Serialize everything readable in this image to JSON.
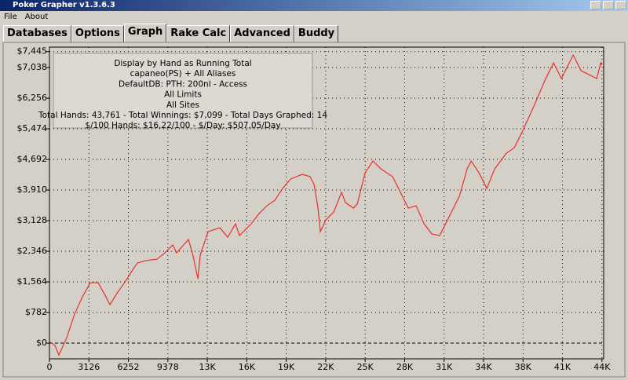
{
  "window": {
    "title": "Poker Grapher v1.3.6.3"
  },
  "menu": [
    "File",
    "About"
  ],
  "tabs": [
    "Databases",
    "Options",
    "Graph",
    "Rake Calc",
    "Advanced",
    "Buddy"
  ],
  "active_tab": 2,
  "chart_data": {
    "type": "line",
    "annotations": [
      "Display by Hand as Running Total",
      "capaneo(PS) + All Aliases",
      "DefaultDB: PTH: 200nl  - Access",
      "All Limits",
      "All Sites",
      "Total Hands: 43,761 - Total Winnings: $7,099 - Total Days Graphed: 14",
      "$/100 Hands: $16.22/100 - $/Day: $507.05/Day"
    ],
    "color": "#e8302c",
    "grid": true,
    "xlim": [
      0,
      43900
    ],
    "ylim": [
      -400,
      7560
    ],
    "xticks": [
      0,
      3126,
      6252,
      9378,
      {
        "value": 12504,
        "label": "13K"
      },
      {
        "value": 15630,
        "label": "16K"
      },
      {
        "value": 18756,
        "label": "19K"
      },
      {
        "value": 21882,
        "label": "22K"
      },
      {
        "value": 25008,
        "label": "25K"
      },
      {
        "value": 28134,
        "label": "28K"
      },
      {
        "value": 31260,
        "label": "31K"
      },
      {
        "value": 34386,
        "label": "34K"
      },
      {
        "value": 37512,
        "label": "38K"
      },
      {
        "value": 40638,
        "label": "41K"
      },
      {
        "value": 43764,
        "label": "44K"
      }
    ],
    "yticks": [
      {
        "value": 0,
        "label": "$0"
      },
      {
        "value": 782,
        "label": "$782"
      },
      {
        "value": 1564,
        "label": "$1,564"
      },
      {
        "value": 2346,
        "label": "$2,346"
      },
      {
        "value": 3128,
        "label": "$3,128"
      },
      {
        "value": 3910,
        "label": "$3,910"
      },
      {
        "value": 4692,
        "label": "$4,692"
      },
      {
        "value": 5474,
        "label": "$5,474"
      },
      {
        "value": 6256,
        "label": "$6,256"
      },
      {
        "value": 7038,
        "label": "$7,038"
      },
      {
        "value": 7445,
        "label": "$7,445"
      }
    ],
    "x": [
      0,
      435,
      746,
      1368,
      1990,
      2612,
      3234,
      3856,
      4478,
      4789,
      5411,
      6033,
      6655,
      6966,
      7588,
      8521,
      9143,
      9765,
      10076,
      11009,
      11320,
      11756,
      11942,
      12564,
      13497,
      14119,
      14741,
      15052,
      15985,
      16607,
      17229,
      17851,
      18473,
      19095,
      20028,
      20650,
      20961,
      21272,
      21459,
      21894,
      22516,
      23138,
      23449,
      24071,
      24382,
      25004,
      25626,
      26248,
      27181,
      27803,
      28425,
      29047,
      29669,
      30291,
      30913,
      31535,
      32468,
      33090,
      33401,
      34023,
      34645,
      35267,
      36200,
      36822,
      37444,
      38377,
      39310,
      39932,
      40554,
      41487,
      42109,
      42731,
      43353,
      43664,
      43761
    ],
    "values": [
      40,
      -60,
      -301,
      140,
      742,
      1183,
      1544,
      1544,
      1183,
      982,
      1303,
      1584,
      1905,
      2045,
      2105,
      2145,
      2306,
      2506,
      2306,
      2647,
      2306,
      1644,
      2246,
      2847,
      2947,
      2707,
      3048,
      2747,
      3048,
      3308,
      3509,
      3649,
      3950,
      4190,
      4311,
      4251,
      4050,
      3449,
      2847,
      3148,
      3348,
      3850,
      3589,
      3449,
      3549,
      4351,
      4652,
      4451,
      4251,
      3850,
      3449,
      3509,
      3048,
      2787,
      2747,
      3148,
      3749,
      4451,
      4652,
      4351,
      3950,
      4451,
      4852,
      4992,
      5393,
      6055,
      6757,
      7158,
      6757,
      7358,
      6957,
      6857,
      6757,
      7158,
      7099
    ]
  }
}
